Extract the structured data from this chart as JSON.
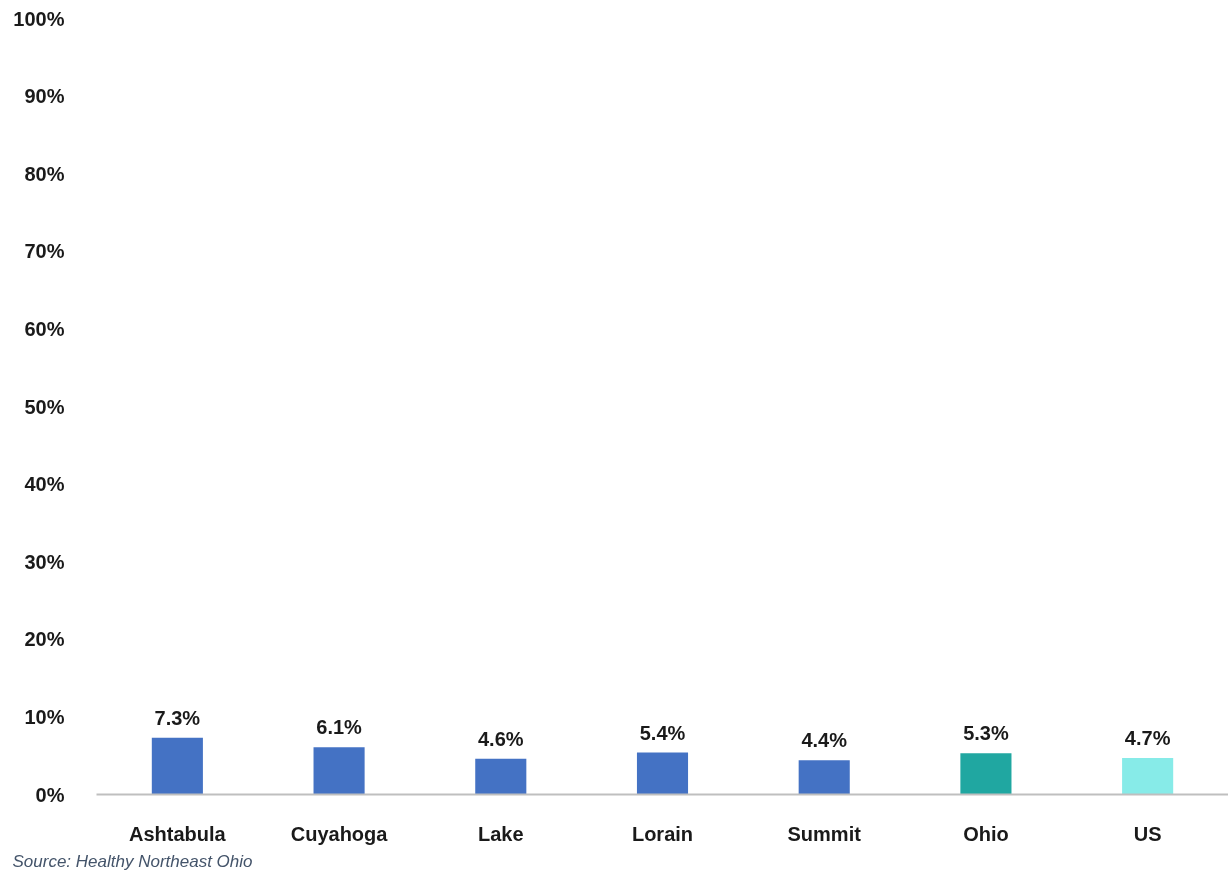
{
  "chart_data": {
    "type": "bar",
    "categories": [
      "Ashtabula",
      "Cuyahoga",
      "Lake",
      "Lorain",
      "Summit",
      "Ohio",
      "US"
    ],
    "values": [
      7.3,
      6.1,
      4.6,
      5.4,
      4.4,
      5.3,
      4.7
    ],
    "colors": [
      "#4472c4",
      "#4472c4",
      "#4472c4",
      "#4472c4",
      "#4472c4",
      "#20a7a1",
      "#87ebe8"
    ],
    "value_labels": [
      "7.3%",
      "6.1%",
      "4.6%",
      "5.4%",
      "4.4%",
      "5.3%",
      "4.7%"
    ],
    "ylim": [
      0,
      100
    ],
    "yticks": [
      {
        "value": 0,
        "label": "0%"
      },
      {
        "value": 10,
        "label": "10%"
      },
      {
        "value": 20,
        "label": "20%"
      },
      {
        "value": 30,
        "label": "30%"
      },
      {
        "value": 40,
        "label": "40%"
      },
      {
        "value": 50,
        "label": "50%"
      },
      {
        "value": 60,
        "label": "60%"
      },
      {
        "value": 70,
        "label": "70%"
      },
      {
        "value": 80,
        "label": "80%"
      },
      {
        "value": 90,
        "label": "90%"
      },
      {
        "value": 100,
        "label": "100%"
      }
    ],
    "annotations": [
      "Source: Healthy Northeast Ohio"
    ]
  }
}
